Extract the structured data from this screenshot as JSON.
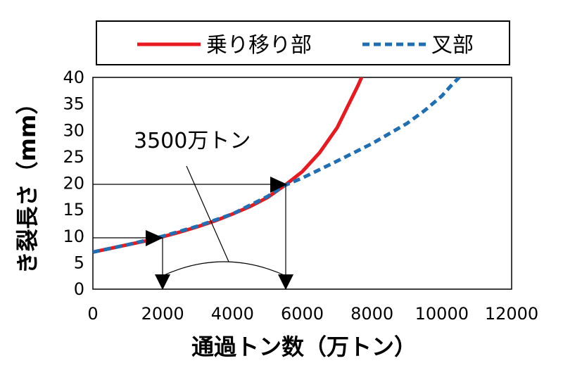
{
  "chart_data": {
    "type": "line",
    "xlabel": "通過トン数（万トン）",
    "ylabel": "き裂長さ（mm）",
    "xlim": [
      0,
      12000
    ],
    "ylim": [
      0,
      40
    ],
    "x_ticks": [
      "0",
      "2000",
      "4000",
      "6000",
      "8000",
      "10000",
      "12000"
    ],
    "y_ticks": [
      "0",
      "5",
      "10",
      "15",
      "20",
      "25",
      "30",
      "35",
      "40"
    ],
    "legend_position": "top",
    "grid": false,
    "series": [
      {
        "name": "乗り移り部",
        "color": "#e8191f",
        "style": "solid",
        "x": [
          0,
          500,
          1000,
          1500,
          2000,
          2500,
          3000,
          3500,
          4000,
          4500,
          5000,
          5500,
          6000,
          6500,
          7000,
          7300,
          7600,
          7800,
          7950
        ],
        "y": [
          7,
          7.7,
          8.4,
          9.1,
          9.9,
          10.8,
          11.8,
          12.9,
          14.2,
          15.6,
          17.3,
          19.6,
          22.2,
          25.8,
          30.5,
          34.5,
          38.5,
          41.5,
          44
        ]
      },
      {
        "name": "叉部",
        "color": "#1f6fb4",
        "style": "dashed",
        "x": [
          0,
          1000,
          2000,
          3000,
          4000,
          5000,
          5500,
          6000,
          7000,
          8000,
          9000,
          9500,
          10000,
          10300,
          10500
        ],
        "y": [
          7,
          8.4,
          10,
          11.9,
          14.2,
          17.5,
          19.6,
          21,
          24.2,
          27.5,
          31.3,
          33.7,
          36.5,
          38.7,
          40
        ]
      }
    ],
    "annotations": [
      {
        "text": "3500万トン"
      }
    ]
  }
}
